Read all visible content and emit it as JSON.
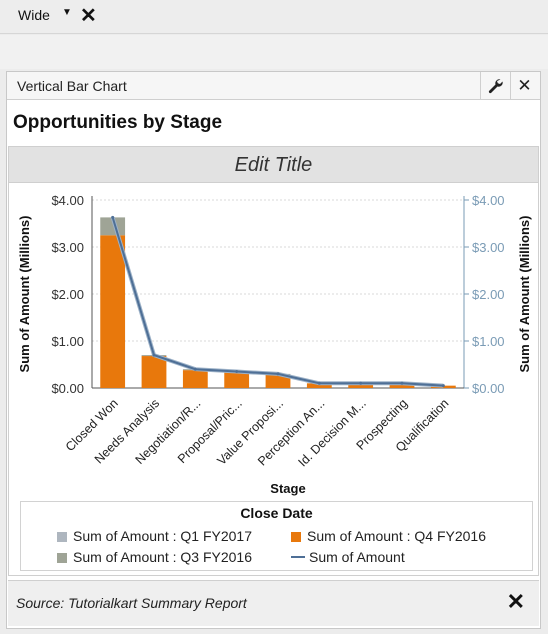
{
  "toolbar": {
    "layout_value": "Wide"
  },
  "panel": {
    "header_title": "Vertical Bar Chart",
    "chart_heading": "Opportunities by Stage"
  },
  "chart_data": {
    "type": "bar",
    "title": "Edit Title",
    "xlabel": "Stage",
    "ylabel": "Sum of Amount (Millions)",
    "ylabel_right": "Sum of Amount (Millions)",
    "ylim": [
      0,
      4
    ],
    "yticks": [
      "$0.00",
      "$1.00",
      "$2.00",
      "$3.00",
      "$4.00"
    ],
    "categories": [
      "Closed Won",
      "Needs Analysis",
      "Negotiation/R...",
      "Proposal/Pric...",
      "Value Proposi...",
      "Perception An...",
      "Id. Decision M...",
      "Prospecting",
      "Qualification"
    ],
    "series": [
      {
        "name": "Sum of Amount : Q4 FY2016",
        "kind": "bar",
        "color": "#e8780c",
        "values": [
          3.25,
          0.68,
          0.38,
          0.33,
          0.28,
          0.1,
          0.1,
          0.1,
          0.05
        ]
      },
      {
        "name": "Sum of Amount : Q3 FY2016",
        "kind": "bar",
        "color": "#9fa496",
        "values": [
          0.38,
          0.02,
          0.02,
          0.02,
          0.02,
          0,
          0,
          0,
          0
        ]
      },
      {
        "name": "Sum of Amount : Q1 FY2017",
        "kind": "bar",
        "color": "#aeb6bf",
        "values": [
          0,
          0,
          0,
          0,
          0,
          0,
          0,
          0,
          0
        ]
      },
      {
        "name": "Sum of Amount",
        "kind": "line",
        "color": "#4e6f96",
        "values": [
          3.63,
          0.7,
          0.4,
          0.35,
          0.3,
          0.1,
          0.1,
          0.1,
          0.05
        ]
      }
    ],
    "legend": {
      "title": "Close Date",
      "position": "bottom",
      "items": [
        {
          "label": "Sum of Amount : Q1 FY2017",
          "color": "#aeb6bf",
          "kind": "box"
        },
        {
          "label": "Sum of Amount : Q4 FY2016",
          "color": "#e8780c",
          "kind": "box"
        },
        {
          "label": "Sum of Amount : Q3 FY2016",
          "color": "#9fa496",
          "kind": "box"
        },
        {
          "label": "Sum of Amount",
          "color": "#4e6f96",
          "kind": "line"
        }
      ]
    }
  },
  "footer": {
    "source_text": "Source: Tutorialkart Summary Report"
  },
  "icons": {
    "close": "close-icon",
    "wrench": "wrench-icon",
    "caret": "chevron-down-icon"
  }
}
